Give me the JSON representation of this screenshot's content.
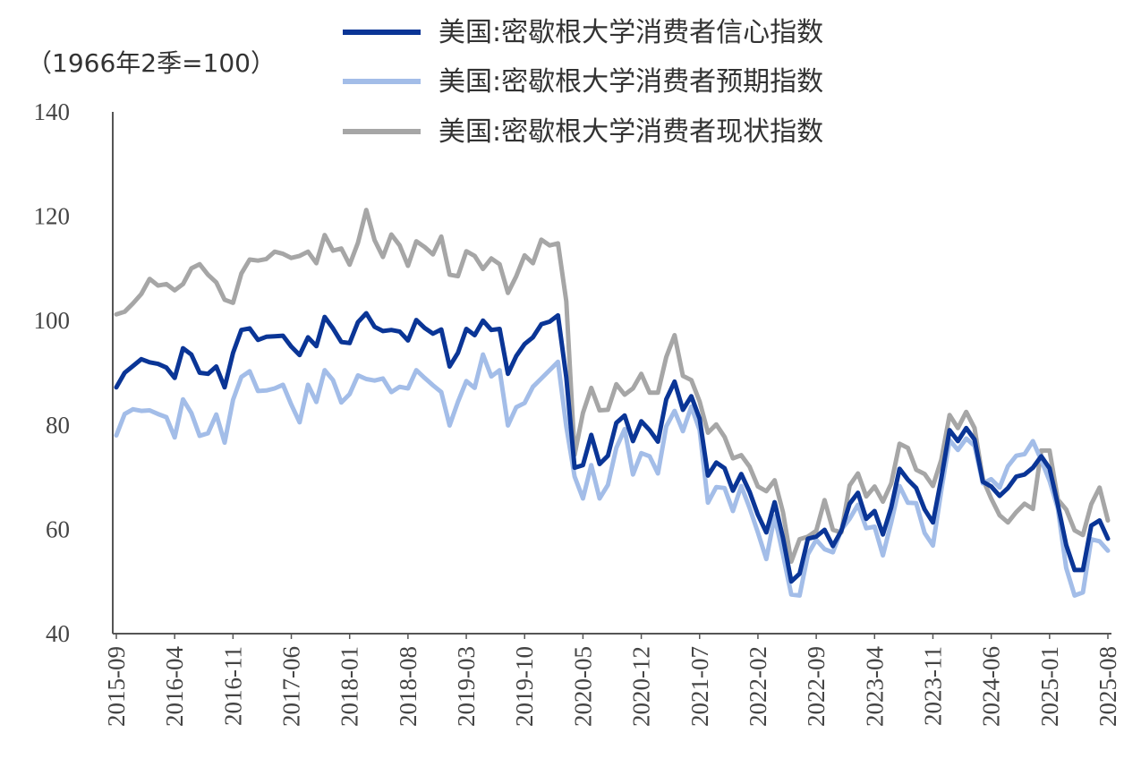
{
  "chart_data": {
    "type": "line",
    "unit_label": "（1966年2季=100）",
    "ylim": [
      40,
      140
    ],
    "yticks": [
      40,
      60,
      80,
      100,
      120,
      140
    ],
    "grid": false,
    "legend_position": "top-center",
    "x_tick_labels": [
      "2015-09",
      "2016-04",
      "2016-11",
      "2017-06",
      "2018-01",
      "2018-08",
      "2019-03",
      "2019-10",
      "2020-05",
      "2020-12",
      "2021-07",
      "2022-02",
      "2022-09",
      "2023-04",
      "2023-11",
      "2024-06",
      "2025-01",
      "2025-08"
    ],
    "x": [
      "2015-09",
      "2015-10",
      "2015-11",
      "2015-12",
      "2016-01",
      "2016-02",
      "2016-03",
      "2016-04",
      "2016-05",
      "2016-06",
      "2016-07",
      "2016-08",
      "2016-09",
      "2016-10",
      "2016-11",
      "2016-12",
      "2017-01",
      "2017-02",
      "2017-03",
      "2017-04",
      "2017-05",
      "2017-06",
      "2017-07",
      "2017-08",
      "2017-09",
      "2017-10",
      "2017-11",
      "2017-12",
      "2018-01",
      "2018-02",
      "2018-03",
      "2018-04",
      "2018-05",
      "2018-06",
      "2018-07",
      "2018-08",
      "2018-09",
      "2018-10",
      "2018-11",
      "2018-12",
      "2019-01",
      "2019-02",
      "2019-03",
      "2019-04",
      "2019-05",
      "2019-06",
      "2019-07",
      "2019-08",
      "2019-09",
      "2019-10",
      "2019-11",
      "2019-12",
      "2020-01",
      "2020-02",
      "2020-03",
      "2020-04",
      "2020-05",
      "2020-06",
      "2020-07",
      "2020-08",
      "2020-09",
      "2020-10",
      "2020-11",
      "2020-12",
      "2021-01",
      "2021-02",
      "2021-03",
      "2021-04",
      "2021-05",
      "2021-06",
      "2021-07",
      "2021-08",
      "2021-09",
      "2021-10",
      "2021-11",
      "2021-12",
      "2022-01",
      "2022-02",
      "2022-03",
      "2022-04",
      "2022-05",
      "2022-06",
      "2022-07",
      "2022-08",
      "2022-09",
      "2022-10",
      "2022-11",
      "2022-12",
      "2023-01",
      "2023-02",
      "2023-03",
      "2023-04",
      "2023-05",
      "2023-06",
      "2023-07",
      "2023-08",
      "2023-09",
      "2023-10",
      "2023-11",
      "2023-12",
      "2024-01",
      "2024-02",
      "2024-03",
      "2024-04",
      "2024-05",
      "2024-06",
      "2024-07",
      "2024-08",
      "2024-09",
      "2024-10",
      "2024-11",
      "2024-12",
      "2025-01",
      "2025-02",
      "2025-03",
      "2025-04",
      "2025-05",
      "2025-06",
      "2025-07",
      "2025-08"
    ],
    "series": [
      {
        "name": "美国:密歇根大学消费者信心指数",
        "color": "#0a3596",
        "values": [
          87.2,
          90.0,
          91.3,
          92.6,
          92.0,
          91.7,
          91.0,
          89.0,
          94.7,
          93.5,
          90.0,
          89.8,
          91.2,
          87.2,
          93.8,
          98.2,
          98.5,
          96.3,
          96.9,
          97.0,
          97.1,
          95.0,
          93.4,
          96.8,
          95.1,
          100.7,
          98.5,
          95.9,
          95.7,
          99.7,
          101.4,
          98.8,
          98.0,
          98.2,
          97.9,
          96.2,
          100.1,
          98.6,
          97.5,
          98.3,
          91.2,
          93.8,
          98.4,
          97.2,
          100.0,
          98.2,
          98.4,
          89.8,
          93.2,
          95.5,
          96.8,
          99.3,
          99.8,
          101.0,
          89.1,
          71.8,
          72.3,
          78.1,
          72.5,
          74.1,
          80.4,
          81.8,
          76.9,
          80.7,
          79.0,
          76.8,
          84.9,
          88.3,
          82.9,
          85.5,
          81.2,
          70.3,
          72.8,
          71.7,
          67.4,
          70.6,
          67.2,
          62.8,
          59.4,
          65.2,
          58.4,
          50.0,
          51.5,
          58.2,
          58.6,
          59.9,
          56.8,
          59.7,
          64.9,
          67.0,
          62.0,
          63.5,
          59.0,
          64.2,
          71.6,
          69.5,
          67.9,
          63.8,
          61.3,
          69.7,
          79.0,
          76.9,
          79.4,
          77.2,
          69.1,
          68.2,
          66.4,
          67.9,
          70.1,
          70.5,
          71.8,
          74.0,
          71.7,
          64.7,
          57.0,
          52.2,
          52.2,
          60.7,
          61.7,
          58.2
        ]
      },
      {
        "name": "美国:密歇根大学消费者预期指数",
        "color": "#a3bde8",
        "values": [
          78.0,
          82.1,
          83.0,
          82.7,
          82.8,
          82.1,
          81.5,
          77.6,
          84.9,
          82.3,
          77.9,
          78.4,
          82.0,
          76.6,
          84.8,
          89.2,
          90.3,
          86.5,
          86.6,
          87.0,
          87.7,
          83.9,
          80.5,
          87.7,
          84.4,
          90.5,
          88.6,
          84.3,
          85.9,
          89.5,
          88.8,
          88.5,
          88.9,
          86.3,
          87.3,
          87.0,
          90.5,
          89.0,
          87.6,
          86.3,
          79.9,
          84.4,
          88.4,
          87.1,
          93.5,
          89.3,
          90.5,
          79.9,
          83.4,
          84.2,
          87.3,
          88.9,
          90.5,
          92.1,
          79.7,
          70.1,
          65.9,
          72.3,
          65.9,
          68.5,
          75.6,
          79.2,
          70.5,
          74.6,
          74.0,
          70.7,
          79.7,
          82.7,
          78.8,
          83.5,
          79.0,
          65.1,
          68.1,
          67.9,
          63.5,
          68.3,
          64.1,
          59.4,
          54.3,
          62.5,
          55.2,
          47.5,
          47.3,
          55.2,
          58.0,
          56.2,
          55.6,
          59.9,
          62.0,
          64.7,
          60.2,
          60.5,
          55.0,
          61.3,
          68.3,
          65.1,
          65.0,
          59.3,
          56.9,
          67.4,
          77.1,
          75.2,
          77.4,
          76.0,
          68.8,
          69.6,
          68.0,
          72.1,
          74.1,
          74.4,
          76.9,
          73.3,
          69.3,
          64.0,
          52.6,
          47.3,
          47.9,
          58.1,
          57.7,
          55.9
        ]
      },
      {
        "name": "美国:密歇根大学消费者现状指数",
        "color": "#a6a6a6",
        "values": [
          101.2,
          101.7,
          103.3,
          105.1,
          108.0,
          106.7,
          107.0,
          105.8,
          107.0,
          110.0,
          110.8,
          108.8,
          107.3,
          104.0,
          103.4,
          109.0,
          111.7,
          111.5,
          111.8,
          113.2,
          112.8,
          112.0,
          112.4,
          113.2,
          111.0,
          116.4,
          113.4,
          113.8,
          110.7,
          114.9,
          121.2,
          115.4,
          112.2,
          116.5,
          114.4,
          110.5,
          115.2,
          114.1,
          112.7,
          116.1,
          108.8,
          108.5,
          113.3,
          112.4,
          109.9,
          111.9,
          110.8,
          105.3,
          108.5,
          112.5,
          111.0,
          115.5,
          114.4,
          114.8,
          103.7,
          74.3,
          82.3,
          87.1,
          82.8,
          82.9,
          87.8,
          85.8,
          87.0,
          89.8,
          86.2,
          86.2,
          93.0,
          97.2,
          89.4,
          88.6,
          84.5,
          78.5,
          80.1,
          77.7,
          73.6,
          74.2,
          72.0,
          68.2,
          67.3,
          69.4,
          63.3,
          53.8,
          58.1,
          58.6,
          59.7,
          65.6,
          59.9,
          59.4,
          68.4,
          70.7,
          66.3,
          68.2,
          65.3,
          68.8,
          76.4,
          75.6,
          71.4,
          70.6,
          68.3,
          73.3,
          81.9,
          79.4,
          82.5,
          79.4,
          69.6,
          65.9,
          62.7,
          61.3,
          63.3,
          64.9,
          63.9,
          75.1,
          75.1,
          65.7,
          63.8,
          59.8,
          58.9,
          64.8,
          68.0,
          61.7
        ]
      }
    ]
  }
}
